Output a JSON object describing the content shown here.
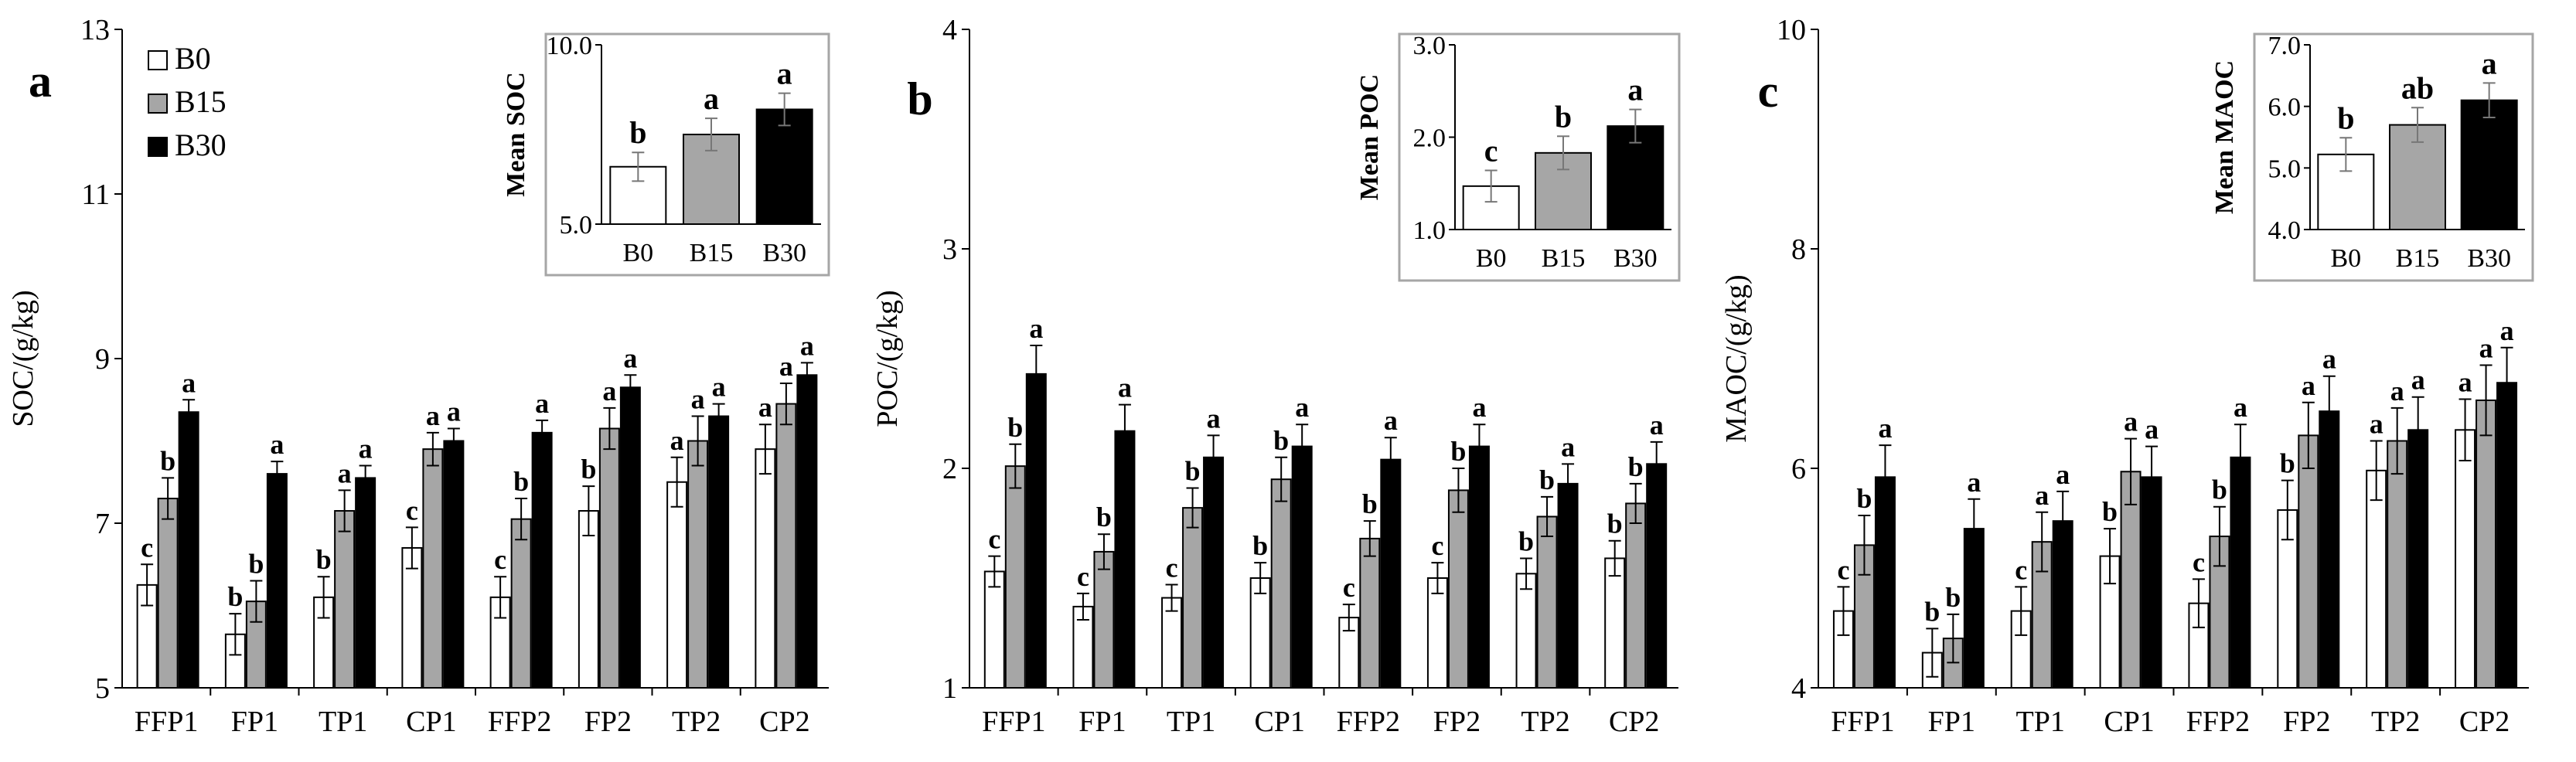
{
  "chart_data": [
    {
      "type": "bar",
      "panel_label": "a",
      "ylabel": "SOC/(g/kg)",
      "ylim": [
        5,
        13
      ],
      "yticks": [
        "5",
        "7",
        "9",
        "11",
        "13"
      ],
      "categories": [
        "FFP1",
        "FP1",
        "TP1",
        "CP1",
        "FFP2",
        "FP2",
        "TP2",
        "CP2"
      ],
      "legend": [
        "B0",
        "B15",
        "B30"
      ],
      "series": [
        {
          "name": "B0",
          "values": [
            6.25,
            5.65,
            6.1,
            6.7,
            6.1,
            7.15,
            7.5,
            7.9
          ],
          "errors": [
            0.25,
            0.25,
            0.25,
            0.25,
            0.25,
            0.3,
            0.3,
            0.3
          ],
          "letters": [
            "c",
            "b",
            "b",
            "c",
            "c",
            "b",
            "a",
            "a"
          ]
        },
        {
          "name": "B15",
          "values": [
            7.3,
            6.05,
            7.15,
            7.9,
            7.05,
            8.15,
            8.0,
            8.45
          ],
          "errors": [
            0.25,
            0.25,
            0.25,
            0.2,
            0.25,
            0.25,
            0.3,
            0.25
          ],
          "letters": [
            "b",
            "b",
            "a",
            "a",
            "b",
            "a",
            "a",
            "a"
          ]
        },
        {
          "name": "B30",
          "values": [
            8.35,
            7.6,
            7.55,
            8.0,
            8.1,
            8.65,
            8.3,
            8.8
          ],
          "errors": [
            0.15,
            0.15,
            0.15,
            0.15,
            0.15,
            0.15,
            0.15,
            0.15
          ],
          "letters": [
            "a",
            "a",
            "a",
            "a",
            "a",
            "a",
            "a",
            "a"
          ]
        }
      ],
      "inset": {
        "ylabel": "Mean SOC",
        "ylim": [
          5.0,
          10.0
        ],
        "yticks": [
          "5.0",
          "10.0"
        ],
        "categories": [
          "B0",
          "B15",
          "B30"
        ],
        "values": [
          6.6,
          7.5,
          8.2
        ],
        "errors": [
          0.4,
          0.45,
          0.45
        ],
        "letters": [
          "b",
          "a",
          "a"
        ]
      }
    },
    {
      "type": "bar",
      "panel_label": "b",
      "ylabel": "POC/(g/kg)",
      "ylim": [
        1,
        4
      ],
      "yticks": [
        "1",
        "2",
        "3",
        "4"
      ],
      "categories": [
        "FFP1",
        "FP1",
        "TP1",
        "CP1",
        "FFP2",
        "FP2",
        "TP2",
        "CP2"
      ],
      "series": [
        {
          "name": "B0",
          "values": [
            1.53,
            1.37,
            1.41,
            1.5,
            1.32,
            1.5,
            1.52,
            1.59
          ],
          "errors": [
            0.07,
            0.06,
            0.06,
            0.07,
            0.06,
            0.07,
            0.07,
            0.08
          ],
          "letters": [
            "c",
            "c",
            "c",
            "b",
            "c",
            "c",
            "b",
            "b"
          ]
        },
        {
          "name": "B15",
          "values": [
            2.01,
            1.62,
            1.82,
            1.95,
            1.68,
            1.9,
            1.78,
            1.84
          ],
          "errors": [
            0.1,
            0.08,
            0.09,
            0.1,
            0.08,
            0.1,
            0.09,
            0.09
          ],
          "letters": [
            "b",
            "b",
            "b",
            "b",
            "b",
            "b",
            "b",
            "b"
          ]
        },
        {
          "name": "B30",
          "values": [
            2.43,
            2.17,
            2.05,
            2.1,
            2.04,
            2.1,
            1.93,
            2.02
          ],
          "errors": [
            0.13,
            0.12,
            0.1,
            0.1,
            0.1,
            0.1,
            0.09,
            0.1
          ],
          "letters": [
            "a",
            "a",
            "a",
            "a",
            "a",
            "a",
            "a",
            "a"
          ]
        }
      ],
      "inset": {
        "ylabel": "Mean POC",
        "ylim": [
          1.0,
          3.0
        ],
        "yticks": [
          "1.0",
          "2.0",
          "3.0"
        ],
        "categories": [
          "B0",
          "B15",
          "B30"
        ],
        "values": [
          1.47,
          1.83,
          2.12
        ],
        "errors": [
          0.17,
          0.18,
          0.18
        ],
        "letters": [
          "c",
          "b",
          "a"
        ]
      }
    },
    {
      "type": "bar",
      "panel_label": "c",
      "ylabel": "MAOC/(g/kg)",
      "ylim": [
        4,
        10
      ],
      "yticks": [
        "4",
        "6",
        "8",
        "10"
      ],
      "categories": [
        "FFP1",
        "FP1",
        "TP1",
        "CP1",
        "FFP2",
        "FP2",
        "TP2",
        "CP2"
      ],
      "series": [
        {
          "name": "B0",
          "values": [
            4.7,
            4.32,
            4.7,
            5.2,
            4.77,
            5.62,
            5.98,
            6.35
          ],
          "errors": [
            0.22,
            0.22,
            0.22,
            0.25,
            0.22,
            0.27,
            0.27,
            0.28
          ],
          "letters": [
            "c",
            "b",
            "c",
            "b",
            "c",
            "b",
            "a",
            "a"
          ]
        },
        {
          "name": "B15",
          "values": [
            5.3,
            4.45,
            5.33,
            5.97,
            5.38,
            6.3,
            6.25,
            6.62
          ],
          "errors": [
            0.27,
            0.22,
            0.27,
            0.3,
            0.27,
            0.3,
            0.3,
            0.32
          ],
          "letters": [
            "b",
            "b",
            "a",
            "a",
            "b",
            "a",
            "a",
            "a"
          ]
        },
        {
          "name": "B30",
          "values": [
            5.92,
            5.45,
            5.52,
            5.92,
            6.1,
            6.52,
            6.35,
            6.78
          ],
          "errors": [
            0.29,
            0.27,
            0.27,
            0.28,
            0.3,
            0.32,
            0.3,
            0.32
          ],
          "letters": [
            "a",
            "a",
            "a",
            "a",
            "a",
            "a",
            "a",
            "a"
          ]
        }
      ],
      "inset": {
        "ylabel": "Mean MAOC",
        "ylim": [
          4.0,
          7.0
        ],
        "yticks": [
          "4.0",
          "5.0",
          "6.0",
          "7.0"
        ],
        "categories": [
          "B0",
          "B15",
          "B30"
        ],
        "values": [
          5.22,
          5.7,
          6.1
        ],
        "errors": [
          0.27,
          0.28,
          0.28
        ],
        "letters": [
          "b",
          "ab",
          "a"
        ]
      }
    }
  ],
  "colors": {
    "B0": "#ffffff",
    "B15": "#a6a6a6",
    "B30": "#000000",
    "axis": "#000000",
    "inset_frame": "#a6a6a6"
  }
}
